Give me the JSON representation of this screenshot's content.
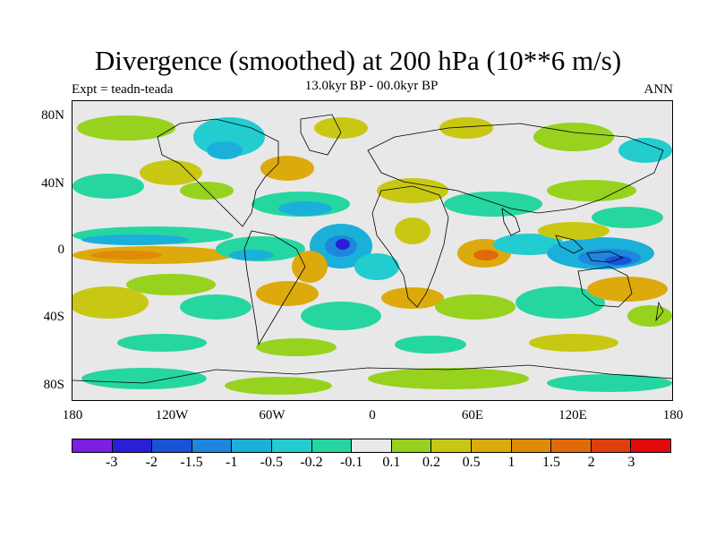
{
  "title": "Divergence (smoothed) at 200 hPa (10**6 m/s)",
  "subtitle": "13.0kyr BP - 00.0kyr BP",
  "left_label": "Expt = teadn-teada",
  "right_label": "ANN",
  "lat_labels": [
    "80N",
    "40N",
    "0",
    "40S",
    "80S"
  ],
  "lon_labels": [
    "180",
    "120W",
    "60W",
    "0",
    "60E",
    "120E",
    "180"
  ],
  "colorbar": {
    "colors": [
      "#7b1fe0",
      "#2a1fd6",
      "#1a52d6",
      "#1e86dc",
      "#1ab0da",
      "#22cccf",
      "#26d6a0",
      "#e8e8e8",
      "#96d21e",
      "#c8c814",
      "#dcaa0c",
      "#e08a0a",
      "#e06a0a",
      "#e0400a",
      "#e00a0a"
    ],
    "labels": [
      "-3",
      "-2",
      "-1.5",
      "-1",
      "-0.5",
      "-0.2",
      "-0.1",
      "0.1",
      "0.2",
      "0.5",
      "1",
      "1.5",
      "2",
      "3"
    ]
  },
  "field_colors": {
    "land_line": "#000000",
    "neutral": "#e8e8e8"
  }
}
